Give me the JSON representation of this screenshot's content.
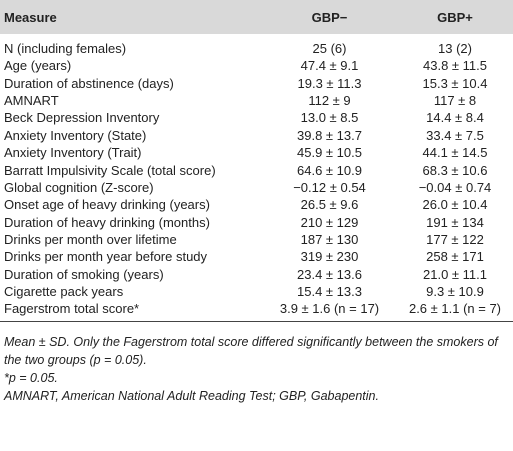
{
  "table": {
    "header": [
      "Measure",
      "GBP−",
      "GBP+"
    ],
    "rows": [
      [
        "N (including females)",
        "25 (6)",
        "13 (2)"
      ],
      [
        "Age (years)",
        "47.4 ± 9.1",
        "43.8 ± 11.5"
      ],
      [
        "Duration of abstinence (days)",
        "19.3 ± 11.3",
        "15.3 ± 10.4"
      ],
      [
        "AMNART",
        "112 ± 9",
        "117 ± 8"
      ],
      [
        "Beck Depression Inventory",
        "13.0 ± 8.5",
        "14.4 ± 8.4"
      ],
      [
        "Anxiety Inventory (State)",
        "39.8 ± 13.7",
        "33.4 ± 7.5"
      ],
      [
        "Anxiety Inventory (Trait)",
        "45.9 ± 10.5",
        "44.1 ± 14.5"
      ],
      [
        "Barratt Impulsivity Scale (total score)",
        "64.6 ± 10.9",
        "68.3 ± 10.6"
      ],
      [
        "Global cognition (Z-score)",
        "−0.12 ± 0.54",
        "−0.04 ± 0.74"
      ],
      [
        "Onset age of heavy drinking (years)",
        "26.5 ± 9.6",
        "26.0 ± 10.4"
      ],
      [
        "Duration of heavy drinking (months)",
        "210 ± 129",
        "191 ± 134"
      ],
      [
        "Drinks per month over lifetime",
        "187 ± 130",
        "177 ± 122"
      ],
      [
        "Drinks per month year before study",
        "319 ± 230",
        "258 ± 171"
      ],
      [
        "Duration of smoking (years)",
        "23.4 ± 13.6",
        "21.0 ± 11.1"
      ],
      [
        "Cigarette pack years",
        "15.4 ± 13.3",
        "9.3 ± 10.9"
      ],
      [
        "Fagerstrom total score*",
        "3.9 ± 1.6 (n = 17)",
        "2.6 ± 1.1 (n = 7)"
      ]
    ],
    "footnotes": [
      "Mean ± SD. Only the Fagerstrom total score differed significantly between the smokers of the two groups (p = 0.05).",
      "*p = 0.05.",
      "AMNART, American National Adult Reading Test; GBP, Gabapentin."
    ]
  }
}
